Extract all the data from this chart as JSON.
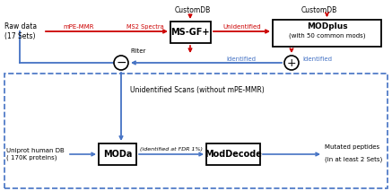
{
  "bg_color": "#ffffff",
  "red": "#cc0000",
  "blue": "#4472c4",
  "box_edge": "#000000",
  "text_color": "#000000",
  "raw_data_label": "Raw data\n(17 Sets)",
  "mpe_mmr_label": "mPE-MMR",
  "ms2_spectra_label": "MS2 Spectra",
  "msgf_label": "MS-GF+",
  "customdb1_label": "CustomDB",
  "unidentified_label": "Unidentified",
  "modplus_line1": "MODplus",
  "modplus_line2": "(with 50 common mods)",
  "customdb2_label": "CustomDB",
  "identified1_label": "Identified",
  "identified2_label": "Identified",
  "filter_label": "Filter",
  "unid_scans_label": "Unidentified Scans (without mPE-MMR)",
  "uniprot_label": "Uniprot human DB\n( 170K proteins)",
  "moda_label": "MODa",
  "fdr_label": "(identified at FDR 1%)",
  "moddecode_label": "ModDecode",
  "mutated_line1": "Mutated peptides",
  "mutated_line2": "(in at least 2 Sets)"
}
